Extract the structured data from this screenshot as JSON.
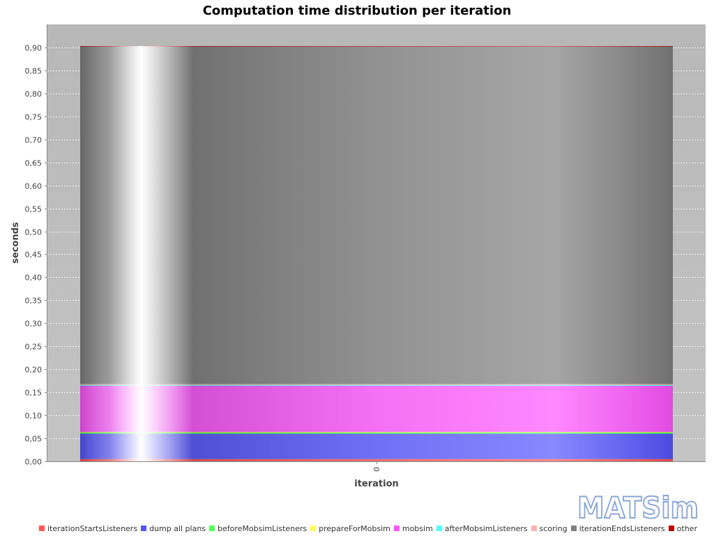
{
  "chart_data": {
    "type": "area",
    "stacked": true,
    "title": "Computation time distribution per iteration",
    "xlabel": "iteration",
    "ylabel": "seconds",
    "x": [
      "0"
    ],
    "ylim": [
      0,
      0.95
    ],
    "yticks": [
      "0,00",
      "0,05",
      "0,10",
      "0,15",
      "0,20",
      "0,25",
      "0,30",
      "0,35",
      "0,40",
      "0,45",
      "0,50",
      "0,55",
      "0,60",
      "0,65",
      "0,70",
      "0,75",
      "0,80",
      "0,85",
      "0,90"
    ],
    "grid": true,
    "legend_position": "bottom",
    "series": [
      {
        "name": "iterationStartsListeners",
        "color": "#ff5555",
        "values": [
          0.005
        ]
      },
      {
        "name": "dump all plans",
        "color": "#5555ff",
        "values": [
          0.055
        ]
      },
      {
        "name": "beforeMobsimListeners",
        "color": "#55ff55",
        "values": [
          0.003
        ]
      },
      {
        "name": "prepareForMobsim",
        "color": "#ffff55",
        "values": [
          0.001
        ]
      },
      {
        "name": "mobsim",
        "color": "#ff55ff",
        "values": [
          0.1
        ]
      },
      {
        "name": "afterMobsimListeners",
        "color": "#55ffff",
        "values": [
          0.002
        ]
      },
      {
        "name": "scoring",
        "color": "#ffafaf",
        "values": [
          0.002
        ]
      },
      {
        "name": "iterationEndsListeners",
        "color": "#808080",
        "values": [
          0.734
        ]
      },
      {
        "name": "other",
        "color": "#c00000",
        "values": [
          0.001
        ]
      }
    ]
  },
  "logo": {
    "text": "MATSim"
  }
}
